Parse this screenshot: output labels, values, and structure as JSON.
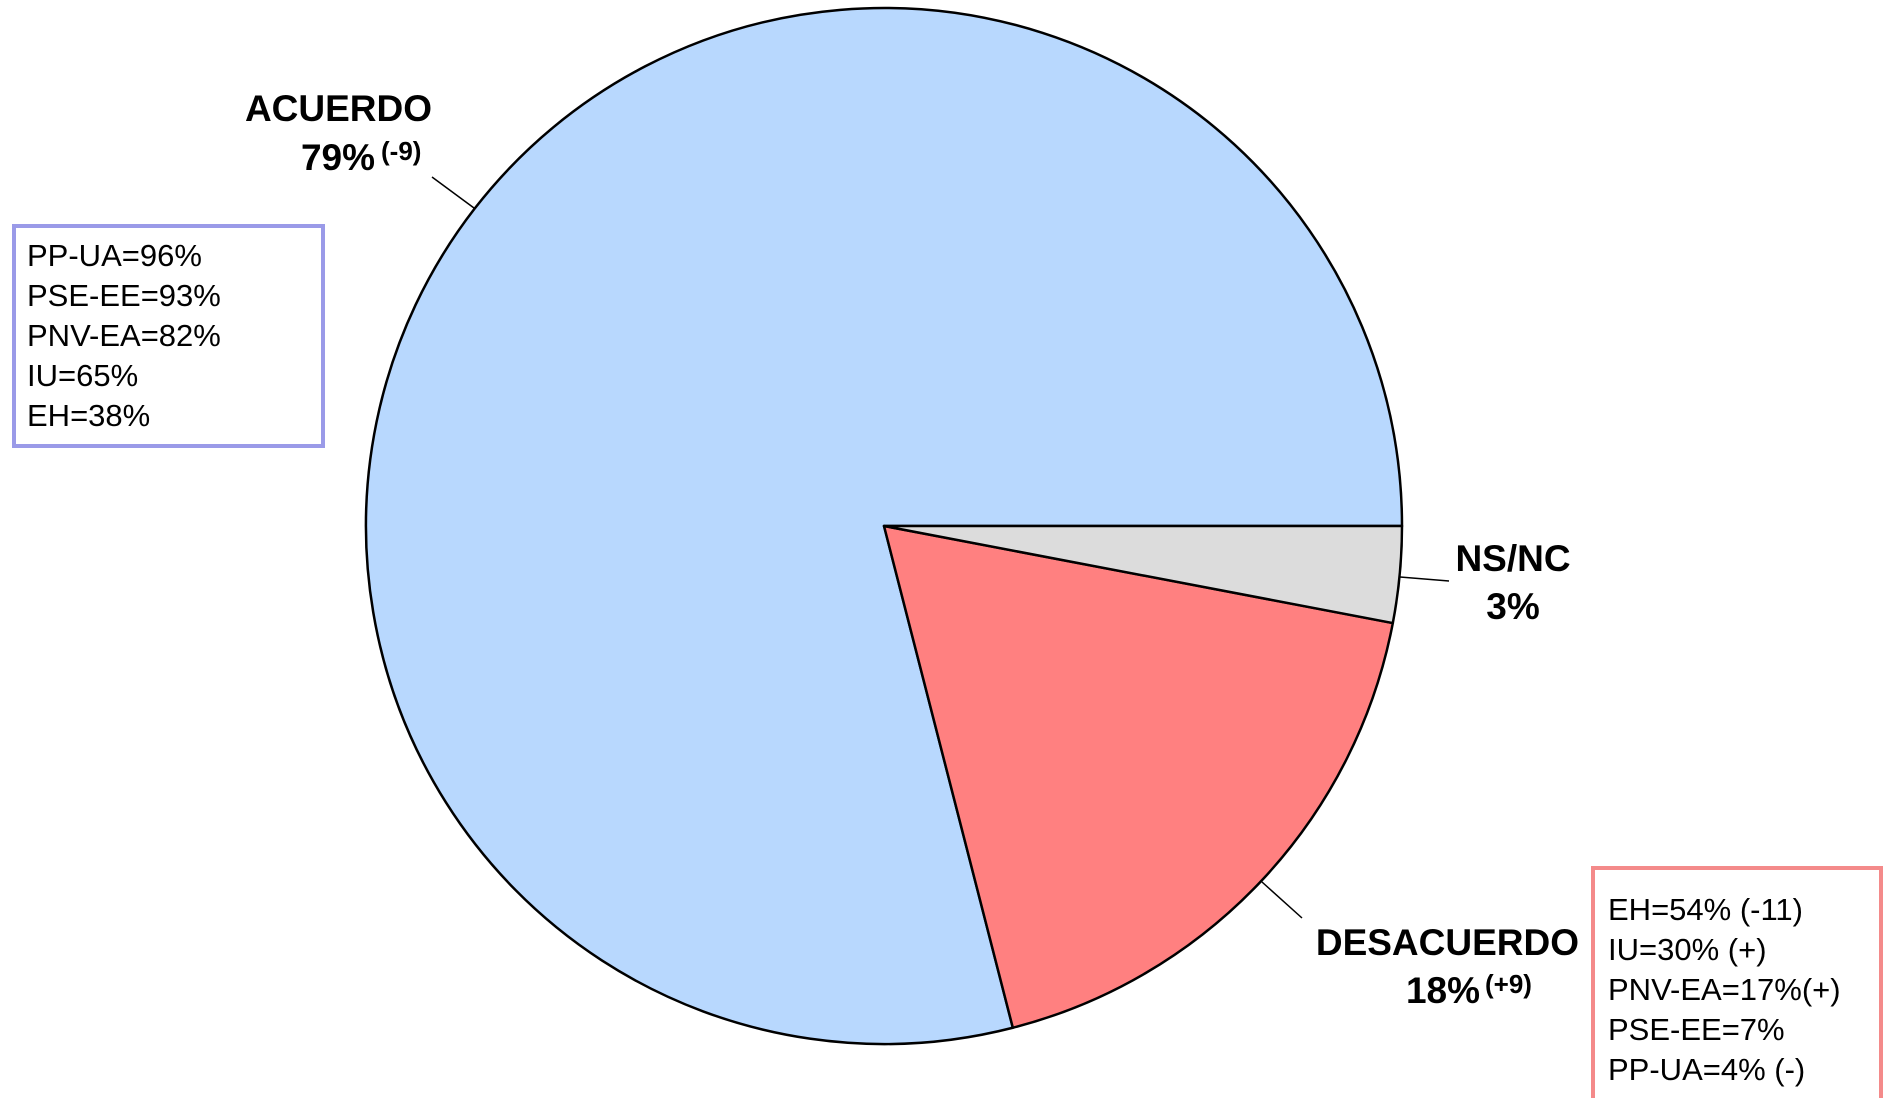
{
  "chart_data": {
    "type": "pie",
    "slices": [
      {
        "label": "ACUERDO",
        "value": 79,
        "value_label": "79%",
        "change": "(-9)",
        "color": "#b8d8fe"
      },
      {
        "label": "DESACUERDO",
        "value": 18,
        "value_label": "18%",
        "change": "(+9)",
        "color": "#ff8080"
      },
      {
        "label": "NS/NC",
        "value": 3,
        "value_label": "3%",
        "change": "",
        "color": "#dcdcdc"
      }
    ],
    "breakdowns": {
      "acuerdo": {
        "border_color": "#9a9ae8",
        "lines": [
          "PP-UA=96%",
          "PSE-EE=93%",
          "PNV-EA=82%",
          "IU=65%",
          "EH=38%"
        ]
      },
      "desacuerdo": {
        "border_color": "#f48a8a",
        "lines": [
          "EH=54% (-11)",
          "IU=30% (+)",
          "PNV-EA=17%(+)",
          "PSE-EE=7%",
          "PP-UA=4% (-)"
        ]
      }
    },
    "legend": "none"
  }
}
